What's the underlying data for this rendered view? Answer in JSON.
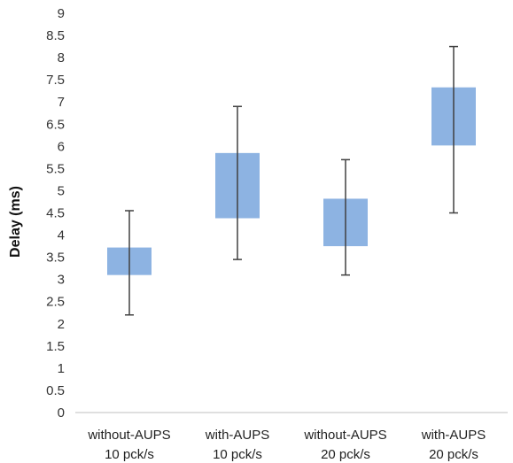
{
  "chart_data": {
    "type": "box",
    "title": "",
    "xlabel": "",
    "ylabel": "Delay (ms)",
    "ylim": [
      0,
      9
    ],
    "yticks": [
      "0",
      "0.5",
      "1",
      "1.5",
      "2",
      "2.5",
      "3",
      "3.5",
      "4",
      "4.5",
      "5",
      "5.5",
      "6",
      "6.5",
      "7",
      "7.5",
      "8",
      "8.5",
      "9"
    ],
    "grid": false,
    "legend": "none",
    "colors": {
      "box": "#8db3e2",
      "whisker": "#404040",
      "axis": "#bfbfbf"
    },
    "categories": [
      {
        "line1": "without-AUPS",
        "line2": "10 pck/s"
      },
      {
        "line1": "with-AUPS",
        "line2": "10 pck/s"
      },
      {
        "line1": "without-AUPS",
        "line2": "20 pck/s"
      },
      {
        "line1": "with-AUPS",
        "line2": "20 pck/s"
      }
    ],
    "boxes": [
      {
        "low": 2.2,
        "q1": 3.1,
        "q3": 3.72,
        "high": 4.55
      },
      {
        "low": 3.45,
        "q1": 4.38,
        "q3": 5.85,
        "high": 6.9
      },
      {
        "low": 3.1,
        "q1": 3.75,
        "q3": 4.82,
        "high": 5.7
      },
      {
        "low": 4.5,
        "q1": 6.02,
        "q3": 7.33,
        "high": 8.25
      }
    ]
  }
}
